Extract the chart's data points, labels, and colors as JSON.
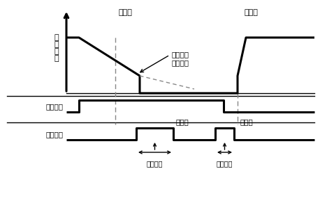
{
  "background_color": "#ffffff",
  "fig_width": 4.58,
  "fig_height": 2.89,
  "dpi": 100,
  "ylabel": "输\n出\n频\n率",
  "label_yun": "运转指令",
  "label_zhi": "制动指令",
  "label_brake_time": "制动时",
  "label_start_time": "起动时",
  "label_dc_brake": "直流制动\n开始频率",
  "label_brake_amount1": "制动量",
  "label_brake_amount2": "制动量",
  "label_brake_duration": "制动时间",
  "label_brake_duration2": "制动时间",
  "line_color": "#000000",
  "dashed_color": "#888888",
  "font": "SimHei"
}
